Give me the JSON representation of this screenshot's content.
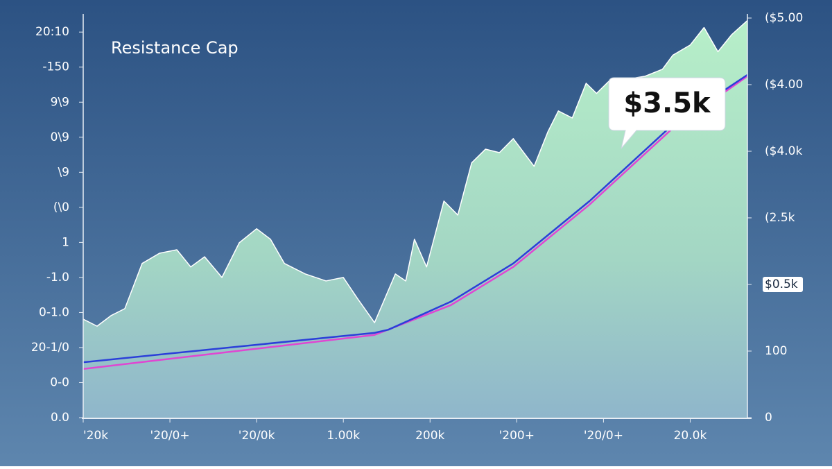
{
  "chart_data": {
    "type": "area",
    "title": "Resistance Cap",
    "annotation": "$3.5k",
    "xlim": [
      0,
      7.66
    ],
    "xticks": [
      {
        "value": 0,
        "label": "'20k"
      },
      {
        "value": 1,
        "label": "'20/0+"
      },
      {
        "value": 2,
        "label": "'20/0k"
      },
      {
        "value": 3,
        "label": "1.00k"
      },
      {
        "value": 4,
        "label": "200k"
      },
      {
        "value": 5,
        "label": "'200+"
      },
      {
        "value": 6,
        "label": "'20/0+"
      },
      {
        "value": 7,
        "label": "20.0k"
      }
    ],
    "ylim": [
      0,
      11.4
    ],
    "yticks": [
      {
        "value": 0,
        "label": "0.0"
      },
      {
        "value": 1,
        "label": "0-0"
      },
      {
        "value": 2,
        "label": "20-1/0"
      },
      {
        "value": 3,
        "label": "0-1.0"
      },
      {
        "value": 4,
        "label": "-1.0"
      },
      {
        "value": 5,
        "label": "1"
      },
      {
        "value": 6,
        "label": "(\\0"
      },
      {
        "value": 7,
        "label": "\\9"
      },
      {
        "value": 8,
        "label": "0\\9"
      },
      {
        "value": 9,
        "label": "9\\9"
      },
      {
        "value": 10,
        "label": "-150"
      },
      {
        "value": 11,
        "label": "20:10"
      }
    ],
    "y2lim": [
      0,
      6
    ],
    "y2ticks": [
      0,
      {
        "value": 1,
        "label": "100"
      },
      {
        "value": 2,
        "label": "$0.5k"
      },
      {
        "value": 3,
        "label": "(2.5k"
      },
      {
        "value": 4,
        "label": "($4.0k"
      },
      {
        "value": 5,
        "label": "($4.00"
      },
      {
        "value": 6,
        "label": "($5.00"
      }
    ],
    "highlight_y2tick": 2,
    "series": [
      {
        "type": "area",
        "color": "#b4ebc6",
        "x": [
          0,
          0.16,
          0.32,
          0.48,
          0.68,
          0.88,
          1.08,
          1.24,
          1.4,
          1.6,
          1.8,
          2.0,
          2.16,
          2.32,
          2.56,
          2.8,
          3.0,
          3.16,
          3.36,
          3.6,
          3.72,
          3.82,
          3.96,
          4.16,
          4.32,
          4.48,
          4.64,
          4.8,
          4.96,
          5.2,
          5.36,
          5.48,
          5.64,
          5.8,
          5.92,
          6.08,
          6.24,
          6.48,
          6.68,
          6.8,
          7.0,
          7.16,
          7.32,
          7.48,
          7.66
        ],
        "values": [
          2.81,
          2.61,
          2.91,
          3.11,
          4.4,
          4.69,
          4.79,
          4.3,
          4.59,
          4.0,
          4.99,
          5.39,
          5.09,
          4.4,
          4.1,
          3.9,
          4.0,
          3.41,
          2.71,
          4.1,
          3.9,
          5.09,
          4.3,
          6.18,
          5.78,
          7.27,
          7.66,
          7.56,
          7.96,
          7.17,
          8.16,
          8.75,
          8.55,
          9.54,
          9.25,
          9.64,
          9.64,
          9.74,
          9.94,
          10.34,
          10.63,
          11.13,
          10.44,
          10.93,
          11.33
        ]
      },
      {
        "type": "line",
        "color": "#e046d2",
        "x": [
          0,
          3.36,
          4.24,
          4.96,
          5.84,
          6.8,
          7.66
        ],
        "values": [
          1.39,
          2.36,
          3.21,
          4.3,
          6.08,
          8.26,
          9.74
        ]
      },
      {
        "type": "line",
        "color": "#2b3fd9",
        "x": [
          0,
          3.36,
          3.52,
          4.24,
          4.96,
          5.84,
          6.8,
          7.66
        ],
        "values": [
          1.58,
          2.42,
          2.51,
          3.31,
          4.4,
          6.18,
          8.36,
          9.78
        ]
      }
    ]
  }
}
